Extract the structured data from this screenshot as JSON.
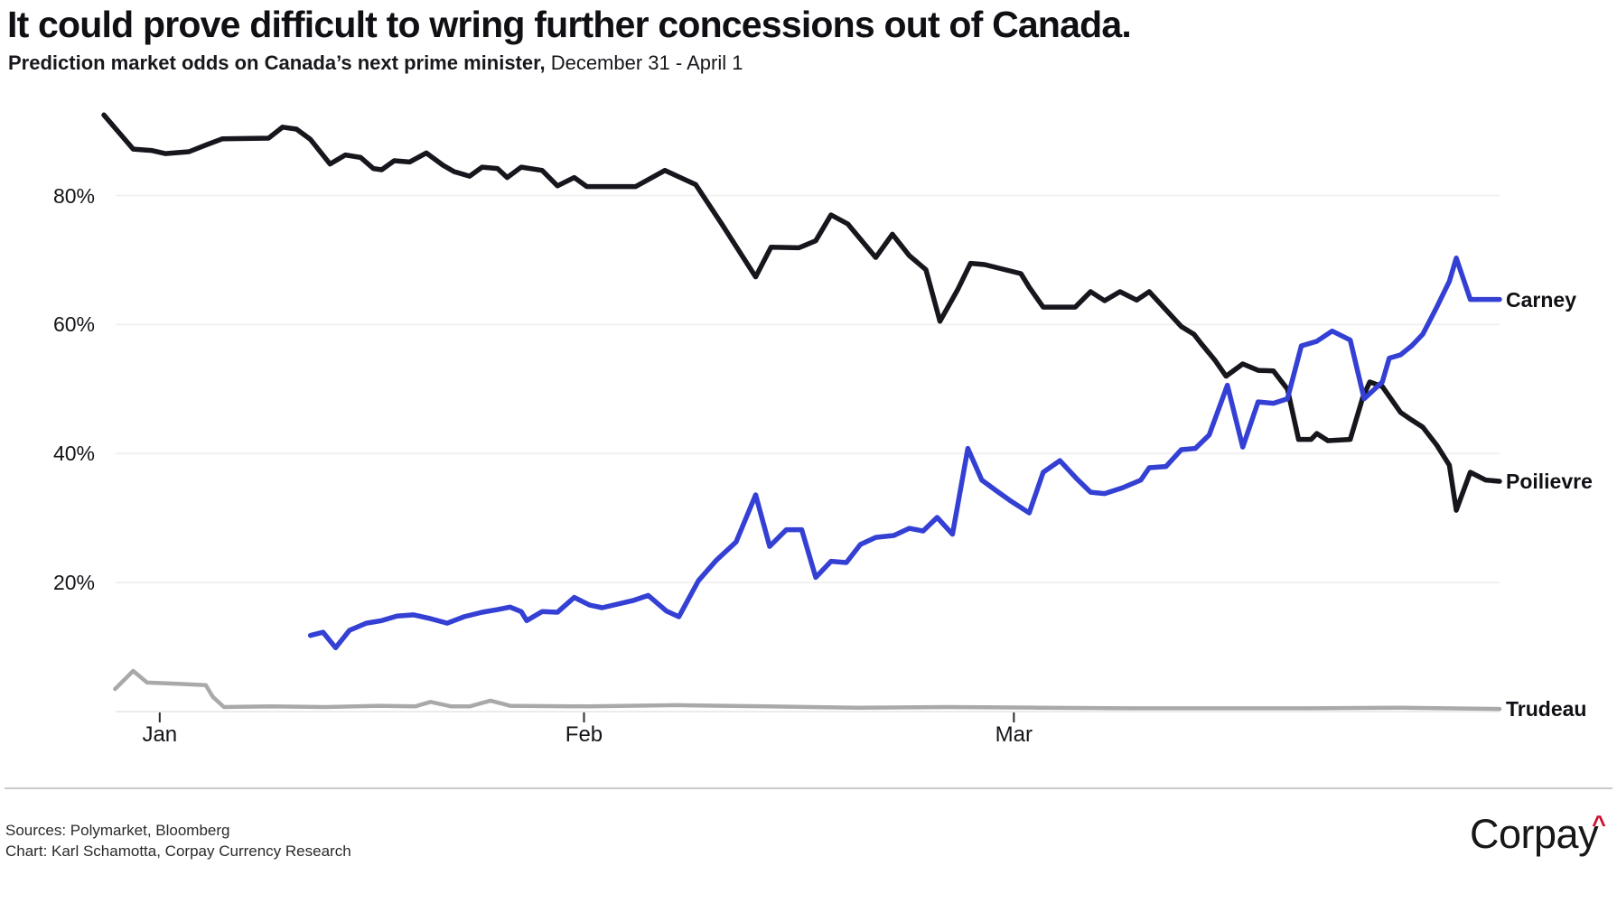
{
  "header": {
    "title": "It could prove difficult to wring further concessions out of Canada.",
    "subtitle_main": "Prediction market odds on Canada’s next prime minister,",
    "subtitle_dates": " December 31 - April 1"
  },
  "footer": {
    "sources": "Sources: Polymarket, Bloomberg",
    "credit": "Chart: Karl Schamotta, Corpay Currency Research",
    "logo_text": "Corpay",
    "logo_caret_icon": "^",
    "logo_caret_color": "#ce0e2d"
  },
  "chart_data": {
    "type": "line",
    "title": "Prediction market odds on Canada's next prime minister",
    "x_unit": "timeline_pct (0 = Dec 31, 100 = Apr 1)",
    "y_unit": "percent odds",
    "ylim": [
      0,
      97
    ],
    "grid": "horizontal",
    "legend_position": "line-end-labels",
    "x_ticks": [
      {
        "label": "Jan",
        "pos": 4.0
      },
      {
        "label": "Feb",
        "pos": 34.4
      },
      {
        "label": "Mar",
        "pos": 65.2
      }
    ],
    "y_ticks": [
      {
        "label": "20%",
        "value": 20
      },
      {
        "label": "40%",
        "value": 40
      },
      {
        "label": "60%",
        "value": 60
      },
      {
        "label": "80%",
        "value": 80
      }
    ],
    "colors": {
      "carney": "#3440d4",
      "poilievre": "#16161d",
      "trudeau": "#a9a9a9",
      "gridline": "#f1f1f1"
    },
    "series": [
      {
        "name": "Trudeau",
        "color": "#a9a9a9",
        "width": 4.5,
        "points": [
          [
            0.8,
            3.5
          ],
          [
            2.1,
            6.3
          ],
          [
            3.1,
            4.5
          ],
          [
            5.3,
            4.3
          ],
          [
            7.3,
            4.1
          ],
          [
            7.8,
            2.3
          ],
          [
            8.6,
            0.7
          ],
          [
            12.0,
            0.8
          ],
          [
            15.9,
            0.7
          ],
          [
            19.7,
            0.9
          ],
          [
            22.3,
            0.8
          ],
          [
            23.4,
            1.5
          ],
          [
            24.9,
            0.8
          ],
          [
            26.2,
            0.8
          ],
          [
            27.7,
            1.7
          ],
          [
            29.1,
            0.9
          ],
          [
            34.6,
            0.8
          ],
          [
            41.1,
            1.0
          ],
          [
            47.6,
            0.8
          ],
          [
            54.0,
            0.6
          ],
          [
            60.5,
            0.7
          ],
          [
            67.0,
            0.6
          ],
          [
            73.5,
            0.5
          ],
          [
            79.9,
            0.5
          ],
          [
            86.4,
            0.5
          ],
          [
            92.9,
            0.6
          ],
          [
            100,
            0.4
          ]
        ]
      },
      {
        "name": "Poilievre",
        "color": "#16161d",
        "width": 5.5,
        "points": [
          [
            0.0,
            92.5
          ],
          [
            2.1,
            87.2
          ],
          [
            3.4,
            87.0
          ],
          [
            4.4,
            86.5
          ],
          [
            6.1,
            86.8
          ],
          [
            7.4,
            87.9
          ],
          [
            8.5,
            88.8
          ],
          [
            11.8,
            88.9
          ],
          [
            12.8,
            90.6
          ],
          [
            13.8,
            90.3
          ],
          [
            14.8,
            88.7
          ],
          [
            16.2,
            84.9
          ],
          [
            17.3,
            86.3
          ],
          [
            18.4,
            85.9
          ],
          [
            19.3,
            84.2
          ],
          [
            19.9,
            84.0
          ],
          [
            20.8,
            85.4
          ],
          [
            21.9,
            85.2
          ],
          [
            23.1,
            86.6
          ],
          [
            24.3,
            84.7
          ],
          [
            25.1,
            83.7
          ],
          [
            26.2,
            83.0
          ],
          [
            27.1,
            84.4
          ],
          [
            28.2,
            84.2
          ],
          [
            28.9,
            82.8
          ],
          [
            29.9,
            84.4
          ],
          [
            31.4,
            83.9
          ],
          [
            32.5,
            81.5
          ],
          [
            33.7,
            82.8
          ],
          [
            34.6,
            81.4
          ],
          [
            38.1,
            81.4
          ],
          [
            40.2,
            83.9
          ],
          [
            42.4,
            81.7
          ],
          [
            44.3,
            75.5
          ],
          [
            46.7,
            67.4
          ],
          [
            47.8,
            72.0
          ],
          [
            49.8,
            71.9
          ],
          [
            51.0,
            73.0
          ],
          [
            52.1,
            77.0
          ],
          [
            53.3,
            75.6
          ],
          [
            55.3,
            70.4
          ],
          [
            56.5,
            74.0
          ],
          [
            57.7,
            70.7
          ],
          [
            58.9,
            68.5
          ],
          [
            59.9,
            60.5
          ],
          [
            61.2,
            65.5
          ],
          [
            62.1,
            69.5
          ],
          [
            63.1,
            69.3
          ],
          [
            65.7,
            67.9
          ],
          [
            66.3,
            65.8
          ],
          [
            67.3,
            62.7
          ],
          [
            69.6,
            62.7
          ],
          [
            70.7,
            65.1
          ],
          [
            71.7,
            63.7
          ],
          [
            72.8,
            65.1
          ],
          [
            74.0,
            63.8
          ],
          [
            74.9,
            65.1
          ],
          [
            77.2,
            59.7
          ],
          [
            78.1,
            58.5
          ],
          [
            78.6,
            57.1
          ],
          [
            79.6,
            54.5
          ],
          [
            80.4,
            52.0
          ],
          [
            81.6,
            53.9
          ],
          [
            82.7,
            52.9
          ],
          [
            83.8,
            52.8
          ],
          [
            84.8,
            50.0
          ],
          [
            85.6,
            42.2
          ],
          [
            86.5,
            42.2
          ],
          [
            86.9,
            43.1
          ],
          [
            87.7,
            42.0
          ],
          [
            89.3,
            42.2
          ],
          [
            90.2,
            48.7
          ],
          [
            90.7,
            51.1
          ],
          [
            91.6,
            50.4
          ],
          [
            92.9,
            46.4
          ],
          [
            93.7,
            45.2
          ],
          [
            94.5,
            44.1
          ],
          [
            95.5,
            41.3
          ],
          [
            96.4,
            38.2
          ],
          [
            96.9,
            31.2
          ],
          [
            97.9,
            37.1
          ],
          [
            99.0,
            35.9
          ],
          [
            100,
            35.7
          ]
        ]
      },
      {
        "name": "Carney",
        "color": "#3440d4",
        "width": 5.5,
        "points": [
          [
            14.8,
            11.8
          ],
          [
            15.7,
            12.3
          ],
          [
            16.6,
            9.9
          ],
          [
            17.6,
            12.6
          ],
          [
            18.8,
            13.7
          ],
          [
            19.9,
            14.1
          ],
          [
            21.0,
            14.8
          ],
          [
            22.2,
            15.0
          ],
          [
            23.4,
            14.4
          ],
          [
            24.6,
            13.7
          ],
          [
            25.8,
            14.7
          ],
          [
            27.1,
            15.4
          ],
          [
            28.2,
            15.8
          ],
          [
            29.1,
            16.2
          ],
          [
            29.9,
            15.5
          ],
          [
            30.3,
            14.1
          ],
          [
            31.4,
            15.5
          ],
          [
            32.5,
            15.4
          ],
          [
            33.7,
            17.7
          ],
          [
            34.8,
            16.5
          ],
          [
            35.7,
            16.1
          ],
          [
            37.9,
            17.2
          ],
          [
            39.0,
            18.0
          ],
          [
            40.3,
            15.6
          ],
          [
            41.2,
            14.7
          ],
          [
            42.6,
            20.3
          ],
          [
            43.9,
            23.5
          ],
          [
            45.3,
            26.3
          ],
          [
            46.7,
            33.6
          ],
          [
            47.7,
            25.6
          ],
          [
            48.9,
            28.2
          ],
          [
            50.0,
            28.2
          ],
          [
            51.0,
            20.8
          ],
          [
            52.1,
            23.3
          ],
          [
            53.2,
            23.1
          ],
          [
            54.2,
            25.9
          ],
          [
            55.3,
            27.0
          ],
          [
            56.6,
            27.3
          ],
          [
            57.7,
            28.4
          ],
          [
            58.7,
            28.0
          ],
          [
            59.7,
            30.1
          ],
          [
            60.8,
            27.5
          ],
          [
            61.9,
            40.8
          ],
          [
            62.9,
            35.9
          ],
          [
            63.9,
            34.3
          ],
          [
            65.0,
            32.6
          ],
          [
            66.3,
            30.8
          ],
          [
            67.3,
            37.1
          ],
          [
            68.5,
            38.9
          ],
          [
            69.7,
            36.1
          ],
          [
            70.7,
            34.0
          ],
          [
            71.7,
            33.8
          ],
          [
            73.0,
            34.7
          ],
          [
            74.3,
            35.9
          ],
          [
            74.9,
            37.8
          ],
          [
            76.1,
            38.0
          ],
          [
            77.2,
            40.6
          ],
          [
            78.2,
            40.8
          ],
          [
            79.2,
            42.9
          ],
          [
            80.5,
            50.6
          ],
          [
            81.6,
            41.0
          ],
          [
            82.7,
            48.0
          ],
          [
            83.8,
            47.8
          ],
          [
            84.8,
            48.5
          ],
          [
            85.8,
            56.7
          ],
          [
            86.9,
            57.4
          ],
          [
            88.0,
            59.0
          ],
          [
            89.3,
            57.6
          ],
          [
            90.3,
            48.5
          ],
          [
            91.6,
            51.1
          ],
          [
            92.1,
            54.8
          ],
          [
            92.9,
            55.3
          ],
          [
            93.7,
            56.7
          ],
          [
            94.5,
            58.5
          ],
          [
            95.5,
            62.7
          ],
          [
            96.4,
            66.7
          ],
          [
            96.9,
            70.3
          ],
          [
            97.9,
            63.9
          ],
          [
            99.0,
            63.9
          ],
          [
            100,
            63.9
          ]
        ]
      }
    ]
  }
}
